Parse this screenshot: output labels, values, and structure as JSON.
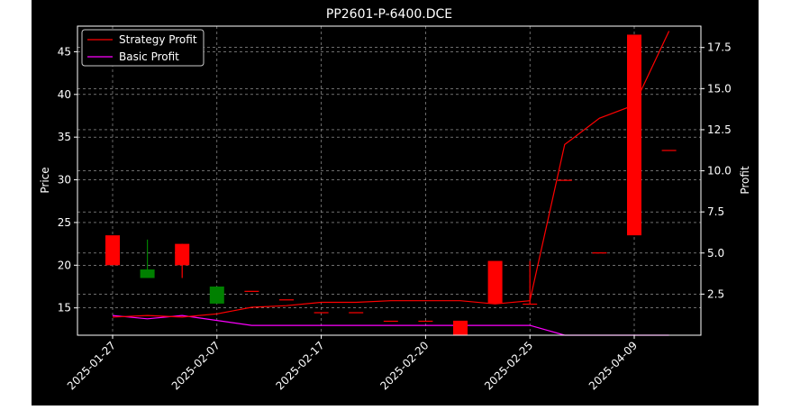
{
  "chart_data": {
    "type": "candlestick",
    "title": "PP2601-P-6400.DCE",
    "x_tick_labels": [
      "2025-01-27",
      "2025-02-07",
      "2025-02-17",
      "2025-02-20",
      "2025-02-25",
      "2025-04-09"
    ],
    "y_left": {
      "label": "Price",
      "lim": [
        11.8,
        48.0
      ],
      "ticks": [
        15,
        20,
        25,
        30,
        35,
        40,
        45
      ]
    },
    "y_right": {
      "label": "Profit",
      "lim": [
        0.0,
        18.8
      ],
      "ticks": [
        "2.5",
        "5.0",
        "7.5",
        "10.0",
        "12.5",
        "15.0",
        "17.5"
      ]
    },
    "grid": true,
    "legend": {
      "position": "top-left",
      "entries": [
        "Strategy Profit",
        "Basic Profit"
      ]
    },
    "colors": {
      "up": "#008000",
      "down": "#ff0000",
      "strategy": "#ff0000",
      "basic": "#ff00ff",
      "background": "#000000",
      "foreground": "#ffffff"
    },
    "candles": [
      {
        "open": 23.5,
        "close": 20.0,
        "high": 23.5,
        "low": 20.0
      },
      {
        "open": 18.5,
        "close": 19.5,
        "high": 23.0,
        "low": 18.5
      },
      {
        "open": 22.5,
        "close": 20.0,
        "high": 22.5,
        "low": 18.5
      },
      {
        "open": 15.5,
        "close": 17.5,
        "high": 17.5,
        "low": 15.5
      },
      {
        "open": 17.0,
        "close": 17.0,
        "high": 17.0,
        "low": 17.0
      },
      {
        "open": 16.0,
        "close": 16.0,
        "high": 16.0,
        "low": 16.0
      },
      {
        "open": 14.5,
        "close": 14.5,
        "high": 14.5,
        "low": 14.5
      },
      {
        "open": 14.5,
        "close": 14.5,
        "high": 14.5,
        "low": 14.5
      },
      {
        "open": 13.5,
        "close": 13.5,
        "high": 13.5,
        "low": 13.5
      },
      {
        "open": 13.5,
        "close": 13.5,
        "high": 13.5,
        "low": 13.5
      },
      {
        "open": 13.5,
        "close": 11.8,
        "high": 13.5,
        "low": 11.8
      },
      {
        "open": 20.5,
        "close": 15.5,
        "high": 20.5,
        "low": 15.5
      },
      {
        "open": 15.5,
        "close": 15.5,
        "high": 20.5,
        "low": 15.5
      },
      {
        "open": 30.0,
        "close": 30.0,
        "high": 30.0,
        "low": 30.0
      },
      {
        "open": 21.5,
        "close": 21.5,
        "high": 21.5,
        "low": 21.5
      },
      {
        "open": 47.0,
        "close": 23.5,
        "high": 47.0,
        "low": 23.5
      },
      {
        "open": 33.5,
        "close": 33.5,
        "high": 33.5,
        "low": 33.5
      }
    ],
    "series": [
      {
        "name": "Strategy Profit",
        "values": [
          1.1,
          1.2,
          1.1,
          1.3,
          1.7,
          1.8,
          2.0,
          2.0,
          2.1,
          2.1,
          2.1,
          1.9,
          2.1,
          11.6,
          13.2,
          14.0,
          18.5
        ]
      },
      {
        "name": "Basic Profit",
        "values": [
          1.2,
          1.0,
          1.2,
          0.9,
          0.6,
          0.6,
          0.6,
          0.6,
          0.6,
          0.6,
          0.6,
          0.6,
          0.6,
          0.0,
          0.0,
          -0.1,
          0.0
        ]
      }
    ]
  }
}
